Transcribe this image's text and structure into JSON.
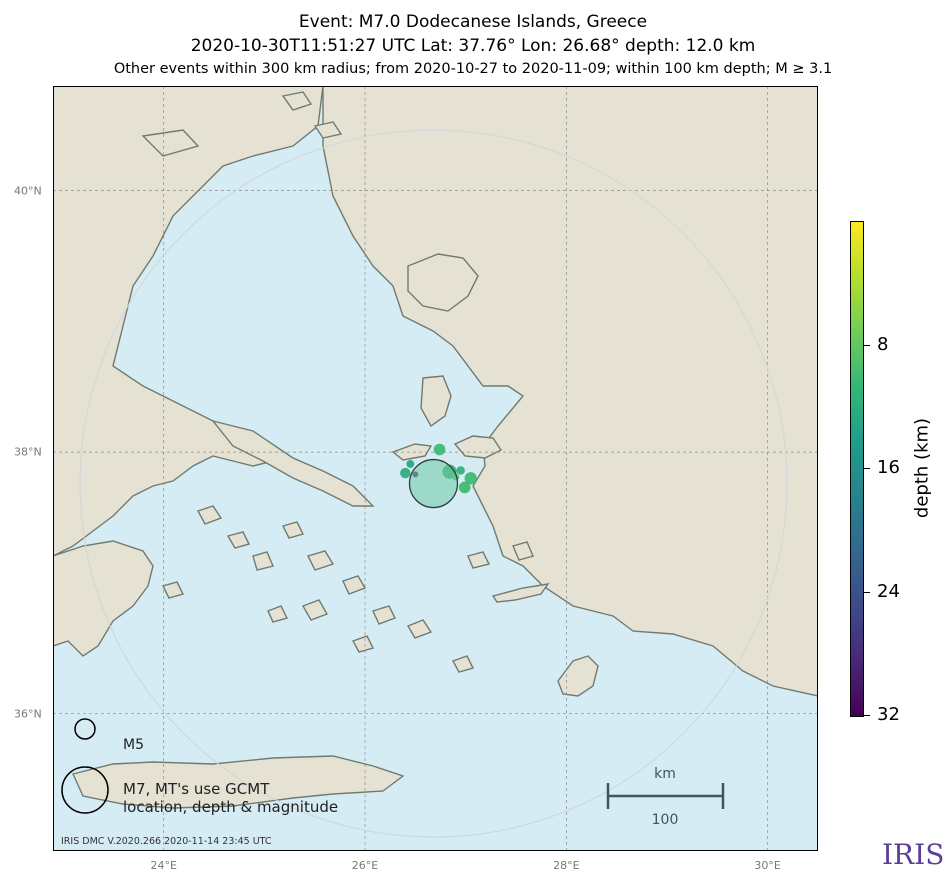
{
  "title": {
    "line1": "Event: M7.0 Dodecanese Islands, Greece",
    "line2": "2020-10-30T11:51:27 UTC Lat: 37.76° Lon: 26.68° depth: 12.0 km",
    "line3": "Other events within 300 km radius; from 2020-10-27 to 2020-11-09; within 100 km depth; M ≥ 3.1"
  },
  "map": {
    "lon_range": [
      22.9,
      30.5
    ],
    "lat_range": [
      34.95,
      40.8
    ],
    "lon_ticks": [
      "24°E",
      "26°E",
      "28°E",
      "30°E"
    ],
    "lat_ticks": [
      "40°N",
      "38°N",
      "36°N"
    ],
    "search_radius_km": 300,
    "colors": {
      "sea": "#d6ecf5",
      "land": "#e6e2d3",
      "coast": "#6f7a72"
    }
  },
  "mainshock": {
    "lat": 37.76,
    "lon": 26.68,
    "depth_km": 12.0,
    "magnitude": 7.0,
    "color": "#6dcaa3"
  },
  "events": [
    {
      "lat": 38.02,
      "lon": 26.74,
      "depth_km": 10,
      "magnitude": 4.2
    },
    {
      "lat": 37.91,
      "lon": 26.45,
      "depth_km": 13,
      "magnitude": 3.6
    },
    {
      "lat": 37.84,
      "lon": 26.4,
      "depth_km": 12,
      "magnitude": 4.0
    },
    {
      "lat": 37.83,
      "lon": 26.5,
      "depth_km": 28,
      "magnitude": 3.3
    },
    {
      "lat": 37.85,
      "lon": 26.84,
      "depth_km": 11,
      "magnitude": 4.6
    },
    {
      "lat": 37.86,
      "lon": 26.95,
      "depth_km": 11,
      "magnitude": 3.7
    },
    {
      "lat": 37.8,
      "lon": 27.05,
      "depth_km": 10,
      "magnitude": 4.3
    },
    {
      "lat": 37.73,
      "lon": 26.99,
      "depth_km": 10,
      "magnitude": 4.2
    },
    {
      "lat": 37.81,
      "lon": 26.9,
      "depth_km": 9,
      "magnitude": 3.5
    }
  ],
  "legend": {
    "m5_label": "M5",
    "m7_label_line1": "M7, MT's use GCMT",
    "m7_label_line2": "location, depth & magnitude"
  },
  "scale_bar": {
    "unit": "km",
    "value": "100"
  },
  "colorbar": {
    "title": "depth (km)",
    "ticks": [
      "8",
      "16",
      "24",
      "32"
    ],
    "range": [
      0,
      32
    ]
  },
  "credit": "IRIS DMC V.2020.266 2020-11-14 23:45 UTC",
  "logo_text": "IRIS"
}
